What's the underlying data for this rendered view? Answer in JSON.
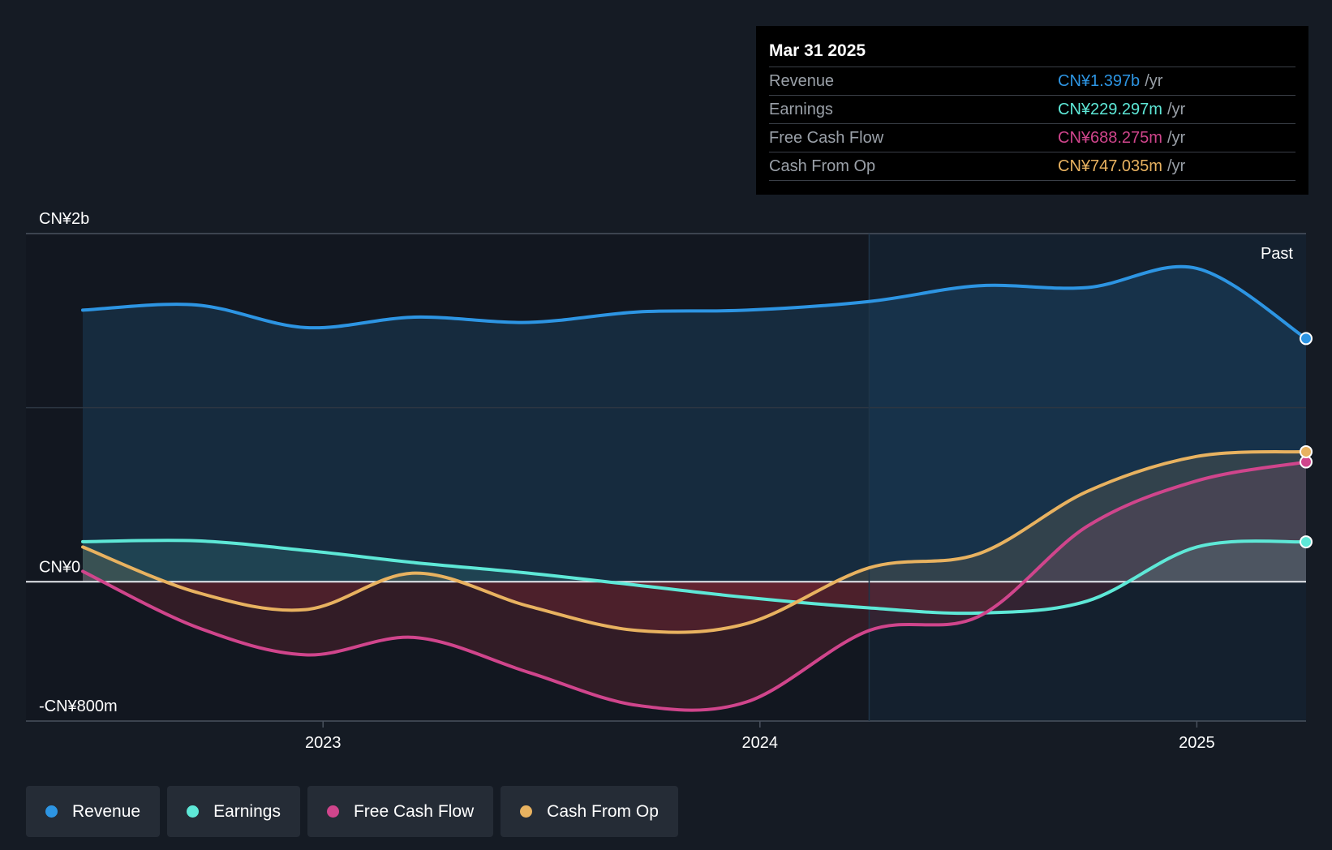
{
  "chart_data": {
    "type": "area",
    "title": "",
    "xlabel": "",
    "ylabel": "",
    "ylim": [
      -800,
      2000
    ],
    "y_unit": "CN¥m",
    "y_tick_labels": [
      {
        "value": 2000,
        "label": "CN¥2b"
      },
      {
        "value": 0,
        "label": "CN¥0"
      },
      {
        "value": -800,
        "label": "-CN¥800m"
      }
    ],
    "x_range": [
      2022.32,
      2025.25
    ],
    "x_tick_labels": [
      {
        "value": 2023.0,
        "label": "2023"
      },
      {
        "value": 2024.0,
        "label": "2024"
      },
      {
        "value": 2025.0,
        "label": "2025"
      }
    ],
    "past_divider_x": 2024.25,
    "past_label": "Past",
    "series": [
      {
        "name": "Revenue",
        "color": "#2d95e3",
        "x": [
          2022.45,
          2022.71,
          2022.96,
          2023.21,
          2023.47,
          2023.72,
          2023.97,
          2024.25,
          2024.5,
          2024.75,
          2025.0,
          2025.25
        ],
        "values": [
          1560,
          1590,
          1460,
          1520,
          1490,
          1550,
          1560,
          1610,
          1700,
          1690,
          1800,
          1397
        ]
      },
      {
        "name": "Earnings",
        "color": "#5ee8d7",
        "x": [
          2022.45,
          2022.71,
          2022.96,
          2023.21,
          2023.47,
          2023.72,
          2023.97,
          2024.25,
          2024.5,
          2024.75,
          2025.0,
          2025.25
        ],
        "values": [
          230,
          235,
          180,
          110,
          50,
          -20,
          -90,
          -150,
          -180,
          -110,
          200,
          229.297
        ]
      },
      {
        "name": "Free Cash Flow",
        "color": "#d0458c",
        "x": [
          2022.45,
          2022.71,
          2022.96,
          2023.21,
          2023.47,
          2023.72,
          2023.97,
          2024.25,
          2024.5,
          2024.75,
          2025.0,
          2025.25
        ],
        "values": [
          60,
          -260,
          -420,
          -320,
          -520,
          -710,
          -690,
          -280,
          -200,
          320,
          580,
          688.275
        ]
      },
      {
        "name": "Cash From Op",
        "color": "#e8b260",
        "x": [
          2022.45,
          2022.71,
          2022.96,
          2023.21,
          2023.47,
          2023.72,
          2023.97,
          2024.25,
          2024.5,
          2024.75,
          2025.0,
          2025.25
        ],
        "values": [
          200,
          -60,
          -160,
          50,
          -140,
          -280,
          -240,
          80,
          160,
          520,
          720,
          747.035
        ]
      }
    ]
  },
  "tooltip": {
    "date": "Mar 31 2025",
    "rows": [
      {
        "label": "Revenue",
        "value": "CN¥1.397b",
        "unit": "/yr",
        "color": "#2d95e3"
      },
      {
        "label": "Earnings",
        "value": "CN¥229.297m",
        "unit": "/yr",
        "color": "#5ee8d7"
      },
      {
        "label": "Free Cash Flow",
        "value": "CN¥688.275m",
        "unit": "/yr",
        "color": "#d0458c"
      },
      {
        "label": "Cash From Op",
        "value": "CN¥747.035m",
        "unit": "/yr",
        "color": "#e8b260"
      }
    ]
  },
  "legend": [
    {
      "label": "Revenue",
      "color": "#2d95e3"
    },
    {
      "label": "Earnings",
      "color": "#5ee8d7"
    },
    {
      "label": "Free Cash Flow",
      "color": "#d0458c"
    },
    {
      "label": "Cash From Op",
      "color": "#e8b260"
    }
  ]
}
